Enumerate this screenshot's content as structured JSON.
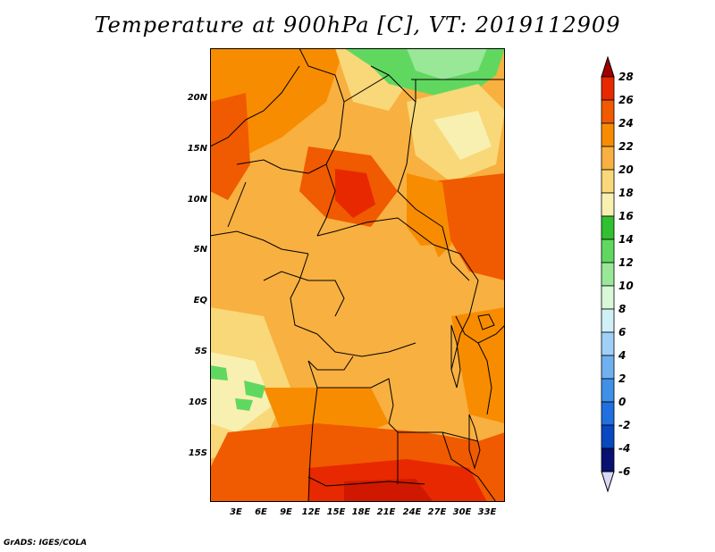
{
  "title": "Temperature at 900hPa [C], VT: 2019112909",
  "credit": "GrADS: IGES/COLA",
  "y_ticks": [
    "20N",
    "15N",
    "10N",
    "5N",
    "EQ",
    "5S",
    "10S",
    "15S"
  ],
  "x_ticks": [
    "3E",
    "6E",
    "9E",
    "12E",
    "15E",
    "18E",
    "21E",
    "24E",
    "27E",
    "30E",
    "33E"
  ],
  "colorbar": {
    "labels": [
      "28",
      "26",
      "24",
      "22",
      "20",
      "18",
      "16",
      "14",
      "12",
      "10",
      "8",
      "6",
      "4",
      "2",
      "0",
      "-2",
      "-4",
      "-6"
    ],
    "colors": [
      "#a00000",
      "#e82800",
      "#f05a00",
      "#f88c00",
      "#f8b040",
      "#f8d878",
      "#f8f0b0",
      "#30c030",
      "#60d860",
      "#98e898",
      "#d8f8d8",
      "#d0f0f8",
      "#a0d0f8",
      "#70b0f0",
      "#4090e8",
      "#2070e0",
      "#0848c0",
      "#081070",
      "#d8d8f8"
    ]
  }
}
